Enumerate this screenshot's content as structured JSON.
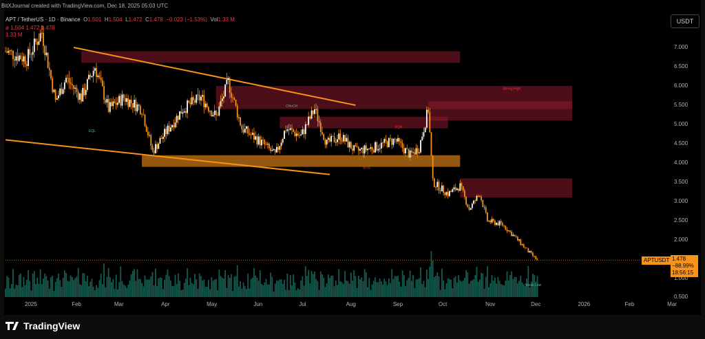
{
  "header": {
    "created_by": "BitXJournal created with TradingView.com, Dec 18, 2025 05:03 UTC"
  },
  "symbol": {
    "name": "APT / TetherUS · 1D · Binance",
    "open_label": "O",
    "open": "1.501",
    "high_label": "H",
    "high": "1.504",
    "low_label": "L",
    "low": "1.472",
    "close_label": "C",
    "close": "1.478",
    "change": "−0.023 (−1.53%)",
    "volume_label": "Vol",
    "volume": "1.33 M"
  },
  "indicator": {
    "symbol": "ø",
    "values": "1.504  1.472  1.478"
  },
  "volume_legend": "1.33 M",
  "currency_button": "USDT",
  "price_axis": [
    "7.000",
    "6.500",
    "6.000",
    "5.500",
    "5.000",
    "4.500",
    "4.000",
    "3.500",
    "3.000",
    "2.500",
    "2.000",
    "1.000",
    "0.500"
  ],
  "time_axis": [
    "2025",
    "Feb",
    "Mar",
    "Apr",
    "May",
    "Jun",
    "Jul",
    "Aug",
    "Sep",
    "Oct",
    "Nov",
    "Dec",
    "2026",
    "Feb",
    "Mar"
  ],
  "last_price": {
    "tag": "APTUSDT",
    "price": "1.478",
    "change_pct": "−88.99%",
    "countdown": "18:56:15"
  },
  "annotations": {
    "strong_high": "Strong High",
    "weak_low": "Weak Low",
    "bos": "BOS",
    "choch": "CHoCH",
    "eql": "EQL",
    "eqh": "EQH"
  },
  "footer": {
    "logo_text": "TradingView"
  },
  "colors": {
    "background": "#000000",
    "candle": "#ffffff",
    "wick_accent": "#f7931a",
    "supply_zone": "#8b1a2b",
    "demand_zone": "#f7931a",
    "trendline": "#f7931a",
    "volume": "#1a6b5c"
  },
  "chart_data": {
    "type": "candlestick",
    "title": "APT / TetherUS · 1D · Binance",
    "xlabel": "",
    "ylabel": "",
    "ylim": [
      0.5,
      7.5
    ],
    "x_range": [
      "2025-01-01",
      "2026-03-15"
    ],
    "price_path": [
      [
        "2025-01-01",
        6.9
      ],
      [
        "2025-01-15",
        6.7
      ],
      [
        "2025-01-25",
        7.4
      ],
      [
        "2025-02-03",
        5.6
      ],
      [
        "2025-02-10",
        6.2
      ],
      [
        "2025-02-20",
        5.7
      ],
      [
        "2025-03-01",
        6.5
      ],
      [
        "2025-03-10",
        5.4
      ],
      [
        "2025-03-20",
        5.7
      ],
      [
        "2025-04-01",
        5.4
      ],
      [
        "2025-04-08",
        4.3
      ],
      [
        "2025-04-15",
        4.7
      ],
      [
        "2025-04-28",
        5.4
      ],
      [
        "2025-05-10",
        5.7
      ],
      [
        "2025-05-20",
        5.2
      ],
      [
        "2025-05-28",
        6.1
      ],
      [
        "2025-06-06",
        4.9
      ],
      [
        "2025-06-20",
        4.5
      ],
      [
        "2025-06-28",
        4.2
      ],
      [
        "2025-07-05",
        4.9
      ],
      [
        "2025-07-15",
        4.7
      ],
      [
        "2025-07-24",
        5.4
      ],
      [
        "2025-08-01",
        4.5
      ],
      [
        "2025-08-10",
        4.7
      ],
      [
        "2025-08-20",
        4.3
      ],
      [
        "2025-09-01",
        4.4
      ],
      [
        "2025-09-15",
        4.6
      ],
      [
        "2025-09-25",
        4.2
      ],
      [
        "2025-10-01",
        4.4
      ],
      [
        "2025-10-07",
        5.4
      ],
      [
        "2025-10-10",
        3.5
      ],
      [
        "2025-10-20",
        3.2
      ],
      [
        "2025-10-28",
        3.4
      ],
      [
        "2025-11-03",
        2.8
      ],
      [
        "2025-11-10",
        3.2
      ],
      [
        "2025-11-15",
        2.5
      ],
      [
        "2025-11-25",
        2.4
      ],
      [
        "2025-12-05",
        2.0
      ],
      [
        "2025-12-12",
        1.7
      ],
      [
        "2025-12-18",
        1.478
      ]
    ],
    "supply_zones": [
      {
        "from": "2025-02-20",
        "to": "2025-10-28",
        "low": 6.6,
        "high": 6.9
      },
      {
        "from": "2025-05-20",
        "to": "2026-01-10",
        "low": 5.4,
        "high": 6.0
      },
      {
        "from": "2025-10-07",
        "to": "2026-01-10",
        "low": 5.1,
        "high": 5.6
      },
      {
        "from": "2025-07-01",
        "to": "2025-10-20",
        "low": 4.9,
        "high": 5.2
      },
      {
        "from": "2025-10-28",
        "to": "2026-01-10",
        "low": 3.1,
        "high": 3.4
      },
      {
        "from": "2025-10-28",
        "to": "2026-01-10",
        "low": 3.4,
        "high": 3.6
      }
    ],
    "demand_zones": [
      {
        "from": "2025-04-01",
        "to": "2025-10-28",
        "low": 3.9,
        "high": 4.2
      }
    ],
    "trendlines": [
      {
        "from": [
          "2025-02-15",
          7.0
        ],
        "to": [
          "2025-08-20",
          5.5
        ]
      },
      {
        "from": [
          "2025-01-01",
          4.6
        ],
        "to": [
          "2025-08-03",
          3.7
        ]
      }
    ]
  }
}
